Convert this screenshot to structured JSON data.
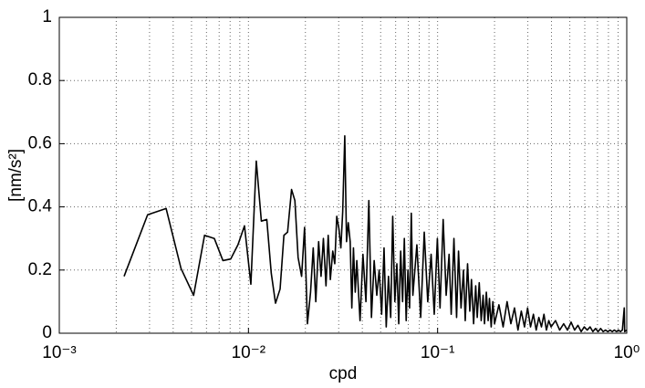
{
  "chart_data": {
    "type": "line",
    "x_label": "cpd",
    "y_label": "[nm/s²]",
    "xscale": "log",
    "grid": true,
    "color": "#000000",
    "xlim": [
      0.001,
      1
    ],
    "ylim": [
      0,
      1
    ],
    "xticks": [
      {
        "value": 0.001,
        "label": "10⁻³"
      },
      {
        "value": 0.01,
        "label": "10⁻²"
      },
      {
        "value": 0.1,
        "label": "10⁻¹"
      },
      {
        "value": 1,
        "label": "10⁰"
      }
    ],
    "xminorticks": [
      0.002,
      0.003,
      0.004,
      0.005,
      0.006,
      0.007,
      0.008,
      0.009,
      0.02,
      0.03,
      0.04,
      0.05,
      0.06,
      0.07,
      0.08,
      0.09,
      0.2,
      0.3,
      0.4,
      0.5,
      0.6,
      0.7,
      0.8,
      0.9
    ],
    "yticks": [
      0,
      0.2,
      0.4,
      0.6,
      0.8,
      1
    ],
    "x": [
      0.0022,
      0.00293,
      0.00367,
      0.0044,
      0.00513,
      0.00586,
      0.0066,
      0.00733,
      0.00806,
      0.0088,
      0.00953,
      0.0103,
      0.011,
      0.0117,
      0.0125,
      0.0132,
      0.0139,
      0.0147,
      0.0154,
      0.0161,
      0.0169,
      0.0176,
      0.0183,
      0.0191,
      0.0198,
      0.0205,
      0.0213,
      0.022,
      0.0227,
      0.0235,
      0.0242,
      0.0249,
      0.0257,
      0.0264,
      0.0271,
      0.0279,
      0.0286,
      0.0293,
      0.0301,
      0.0308,
      0.0315,
      0.0323,
      0.033,
      0.0337,
      0.0345,
      0.0352,
      0.0359,
      0.0367,
      0.0374,
      0.0389,
      0.0403,
      0.0418,
      0.0433,
      0.0447,
      0.0462,
      0.0477,
      0.0491,
      0.0506,
      0.0521,
      0.0535,
      0.055,
      0.0565,
      0.0579,
      0.0594,
      0.0609,
      0.0623,
      0.0638,
      0.0653,
      0.0667,
      0.0682,
      0.0697,
      0.0711,
      0.0726,
      0.074,
      0.0777,
      0.0814,
      0.085,
      0.0887,
      0.0924,
      0.096,
      0.0997,
      0.103,
      0.107,
      0.111,
      0.115,
      0.118,
      0.122,
      0.126,
      0.129,
      0.133,
      0.137,
      0.14,
      0.144,
      0.148,
      0.151,
      0.155,
      0.159,
      0.162,
      0.166,
      0.17,
      0.174,
      0.177,
      0.181,
      0.185,
      0.188,
      0.192,
      0.196,
      0.2,
      0.211,
      0.222,
      0.233,
      0.244,
      0.255,
      0.266,
      0.277,
      0.288,
      0.299,
      0.31,
      0.321,
      0.332,
      0.343,
      0.354,
      0.365,
      0.376,
      0.387,
      0.398,
      0.42,
      0.442,
      0.464,
      0.486,
      0.508,
      0.53,
      0.552,
      0.574,
      0.596,
      0.618,
      0.64,
      0.662,
      0.684,
      0.706,
      0.728,
      0.75,
      0.772,
      0.794,
      0.816,
      0.838,
      0.86,
      0.882,
      0.904,
      0.926,
      0.948,
      0.97,
      0.975,
      1
    ],
    "values": [
      0.18,
      0.375,
      0.395,
      0.205,
      0.12,
      0.31,
      0.3,
      0.23,
      0.235,
      0.28,
      0.34,
      0.155,
      0.545,
      0.355,
      0.36,
      0.19,
      0.095,
      0.14,
      0.31,
      0.32,
      0.455,
      0.42,
      0.24,
      0.18,
      0.335,
      0.03,
      0.13,
      0.27,
      0.1,
      0.29,
      0.18,
      0.3,
      0.15,
      0.31,
      0.17,
      0.26,
      0.22,
      0.37,
      0.33,
      0.27,
      0.385,
      0.625,
      0.29,
      0.35,
      0.29,
      0.08,
      0.27,
      0.13,
      0.23,
      0.04,
      0.25,
      0.1,
      0.42,
      0.05,
      0.23,
      0.12,
      0.2,
      0.06,
      0.27,
      0.02,
      0.18,
      0.05,
      0.37,
      0.1,
      0.22,
      0.03,
      0.26,
      0.1,
      0.3,
      0.04,
      0.2,
      0.08,
      0.38,
      0.12,
      0.28,
      0.05,
      0.32,
      0.1,
      0.25,
      0.06,
      0.3,
      0.08,
      0.36,
      0.12,
      0.25,
      0.06,
      0.3,
      0.05,
      0.26,
      0.08,
      0.2,
      0.04,
      0.22,
      0.07,
      0.17,
      0.03,
      0.15,
      0.05,
      0.16,
      0.04,
      0.12,
      0.03,
      0.13,
      0.04,
      0.11,
      0.02,
      0.1,
      0.03,
      0.09,
      0.02,
      0.1,
      0.03,
      0.08,
      0.01,
      0.07,
      0.02,
      0.08,
      0.02,
      0.06,
      0.01,
      0.05,
      0.02,
      0.06,
      0.01,
      0.04,
      0.02,
      0.04,
      0.01,
      0.03,
      0.01,
      0.035,
      0.01,
      0.025,
      0.005,
      0.02,
      0.01,
      0.02,
      0.005,
      0.015,
      0.005,
      0.015,
      0.005,
      0.01,
      0.005,
      0.01,
      0.005,
      0.01,
      0.005,
      0.01,
      0.005,
      0.01,
      0.08,
      0.005,
      0.01
    ]
  }
}
